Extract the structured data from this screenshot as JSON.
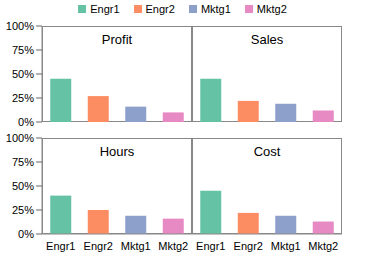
{
  "chart_data": [
    {
      "type": "bar",
      "title": "Profit",
      "categories": [
        "Engr1",
        "Engr2",
        "Mktg1",
        "Mktg2"
      ],
      "values": [
        45,
        27,
        16,
        10
      ],
      "colors": [
        "#66c2a5",
        "#fc8d62",
        "#8da0cb",
        "#e78ac3"
      ],
      "ylim": [
        0,
        100
      ],
      "yticks": [
        {
          "value": 0,
          "label": "0%"
        },
        {
          "value": 25,
          "label": "25%"
        },
        {
          "value": 50,
          "label": "50%"
        },
        {
          "value": 75,
          "label": "75%"
        },
        {
          "value": 100,
          "label": "100%"
        }
      ],
      "legend": "top",
      "tick_labels": "y"
    },
    {
      "type": "bar",
      "title": "Sales",
      "categories": [
        "Engr1",
        "Engr2",
        "Mktg1",
        "Mktg2"
      ],
      "values": [
        45,
        22,
        19,
        12
      ],
      "colors": [
        "#66c2a5",
        "#fc8d62",
        "#8da0cb",
        "#e78ac3"
      ],
      "ylim": [
        0,
        100
      ],
      "yticks": [
        {
          "value": 0,
          "label": "0%"
        },
        {
          "value": 25,
          "label": "25%"
        },
        {
          "value": 50,
          "label": "50%"
        },
        {
          "value": 75,
          "label": "75%"
        },
        {
          "value": 100,
          "label": "100%"
        }
      ],
      "legend": "top",
      "tick_labels": false
    },
    {
      "type": "bar",
      "title": "Hours",
      "categories": [
        "Engr1",
        "Engr2",
        "Mktg1",
        "Mktg2"
      ],
      "values": [
        40,
        25,
        19,
        16
      ],
      "colors": [
        "#66c2a5",
        "#fc8d62",
        "#8da0cb",
        "#e78ac3"
      ],
      "ylim": [
        0,
        100
      ],
      "yticks": [
        {
          "value": 0,
          "label": "0%"
        },
        {
          "value": 25,
          "label": "25%"
        },
        {
          "value": 50,
          "label": "50%"
        },
        {
          "value": 75,
          "label": "75%"
        },
        {
          "value": 100,
          "label": "100%"
        }
      ],
      "legend": "top"
    },
    {
      "type": "bar",
      "title": "Cost",
      "categories": [
        "Engr1",
        "Engr2",
        "Mktg1",
        "Mktg2"
      ],
      "values": [
        45,
        22,
        19,
        13
      ],
      "colors": [
        "#66c2a5",
        "#fc8d62",
        "#8da0cb",
        "#e78ac3"
      ],
      "ylim": [
        0,
        100
      ],
      "yticks": [
        {
          "value": 0,
          "label": "0%"
        },
        {
          "value": 25,
          "label": "25%"
        },
        {
          "value": 50,
          "label": "50%"
        },
        {
          "value": 75,
          "label": "75%"
        },
        {
          "value": 100,
          "label": "100%"
        }
      ],
      "legend": "top",
      "tick_labels": "x"
    }
  ]
}
